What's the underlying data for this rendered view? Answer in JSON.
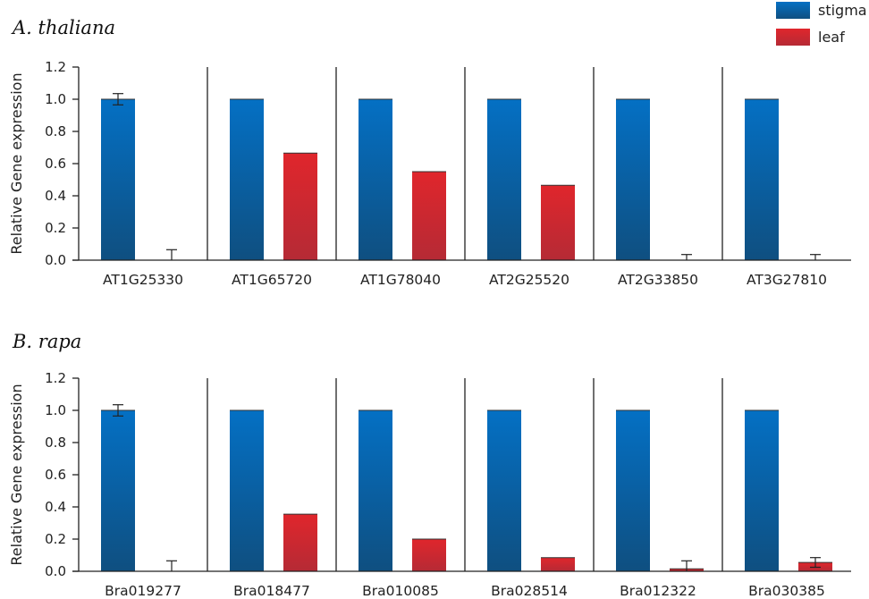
{
  "chart_data": [
    {
      "type": "bar",
      "title": "A. thaliana",
      "ylabel": "Relative Gene expression",
      "ylim": [
        0,
        1.2
      ],
      "yticks": [
        "0.0",
        "0.2",
        "0.4",
        "0.6",
        "0.8",
        "1.0",
        "1.2"
      ],
      "categories": [
        "AT1G25330",
        "AT1G65720",
        "AT1G78040",
        "AT2G25520",
        "AT2G33850",
        "AT3G27810"
      ],
      "series": [
        {
          "name": "stigma",
          "values": [
            1.0,
            1.0,
            1.0,
            1.0,
            1.0,
            1.0
          ],
          "errors": [
            0.035,
            0.0,
            0.0,
            0.0,
            0.0,
            0.0
          ]
        },
        {
          "name": "leaf",
          "values": [
            0.0,
            0.665,
            0.55,
            0.465,
            0.0,
            0.0
          ],
          "errors": [
            0.065,
            0.0,
            0.0,
            0.0,
            0.035,
            0.035
          ]
        }
      ]
    },
    {
      "type": "bar",
      "title": "B. rapa",
      "ylabel": "Relative Gene expression",
      "ylim": [
        0,
        1.2
      ],
      "yticks": [
        "0.0",
        "0.2",
        "0.4",
        "0.6",
        "0.8",
        "1.0",
        "1.2"
      ],
      "categories": [
        "Bra019277",
        "Bra018477",
        "Bra010085",
        "Bra028514",
        "Bra012322",
        "Bra030385"
      ],
      "series": [
        {
          "name": "stigma",
          "values": [
            1.0,
            1.0,
            1.0,
            1.0,
            1.0,
            1.0
          ],
          "errors": [
            0.035,
            0.0,
            0.0,
            0.0,
            0.0,
            0.0
          ]
        },
        {
          "name": "leaf",
          "values": [
            0.0,
            0.355,
            0.2,
            0.085,
            0.015,
            0.055
          ],
          "errors": [
            0.065,
            0.0,
            0.0,
            0.0,
            0.05,
            0.03
          ]
        }
      ]
    }
  ],
  "legend": {
    "placement": "top-right",
    "items": [
      {
        "label": "stigma",
        "color": "#0d63a6"
      },
      {
        "label": "leaf",
        "color": "#d9272e"
      }
    ]
  },
  "colors": {
    "stigma_top": "#0470c4",
    "stigma_bottom": "#0f4f80",
    "leaf_top": "#e0262c",
    "leaf_bottom": "#b52a35"
  }
}
